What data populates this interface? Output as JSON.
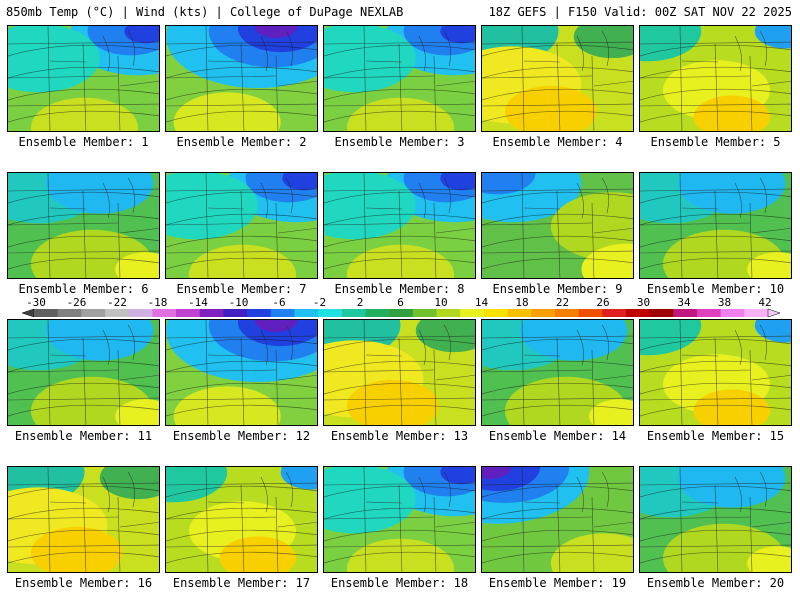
{
  "header": {
    "left": "850mb Temp (°C) | Wind (kts) | College of DuPage NEXLAB",
    "right": "18Z GEFS | F150 Valid: 00Z SAT NOV 22 2025"
  },
  "panels": [
    {
      "label": "Ensemble Member: 1",
      "style": "cold_ne"
    },
    {
      "label": "Ensemble Member: 2",
      "style": "very_cold_ne"
    },
    {
      "label": "Ensemble Member: 3",
      "style": "cold_ne"
    },
    {
      "label": "Ensemble Member: 4",
      "style": "warm_low_west"
    },
    {
      "label": "Ensemble Member: 5",
      "style": "warm_mid"
    },
    {
      "label": "Ensemble Member: 6",
      "style": "mild"
    },
    {
      "label": "Ensemble Member: 7",
      "style": "cold_ne"
    },
    {
      "label": "Ensemble Member: 8",
      "style": "cold_ne"
    },
    {
      "label": "Ensemble Member: 9",
      "style": "trough_mid"
    },
    {
      "label": "Ensemble Member: 10",
      "style": "mild"
    },
    {
      "label": "Ensemble Member: 11",
      "style": "mild"
    },
    {
      "label": "Ensemble Member: 12",
      "style": "very_cold_ne"
    },
    {
      "label": "Ensemble Member: 13",
      "style": "warm_low_west"
    },
    {
      "label": "Ensemble Member: 14",
      "style": "mild"
    },
    {
      "label": "Ensemble Member: 15",
      "style": "warm_mid"
    },
    {
      "label": "Ensemble Member: 16",
      "style": "warm_low_west"
    },
    {
      "label": "Ensemble Member: 17",
      "style": "warm_mid"
    },
    {
      "label": "Ensemble Member: 18",
      "style": "cold_ne"
    },
    {
      "label": "Ensemble Member: 19",
      "style": "very_cold_nw"
    },
    {
      "label": "Ensemble Member: 20",
      "style": "mild"
    }
  ],
  "colorbar": {
    "ticks": [
      "-30",
      "-26",
      "-22",
      "-18",
      "-14",
      "-10",
      "-6",
      "-2",
      "2",
      "6",
      "10",
      "14",
      "18",
      "22",
      "26",
      "30",
      "34",
      "38",
      "42"
    ],
    "colors": [
      "#606060",
      "#808080",
      "#a0a0a0",
      "#c0c0c0",
      "#d0b0e0",
      "#e070e0",
      "#c040d0",
      "#8020c0",
      "#4020c0",
      "#2040e0",
      "#2080f0",
      "#20c0f0",
      "#20e0e0",
      "#20c8a0",
      "#20b060",
      "#30a040",
      "#70c030",
      "#b0d820",
      "#e8f020",
      "#f8e000",
      "#f8c000",
      "#f8a000",
      "#f88000",
      "#f05000",
      "#e02020",
      "#c00000",
      "#a00000",
      "#c01880",
      "#e040c0",
      "#f080f0",
      "#f8b0f8"
    ]
  }
}
